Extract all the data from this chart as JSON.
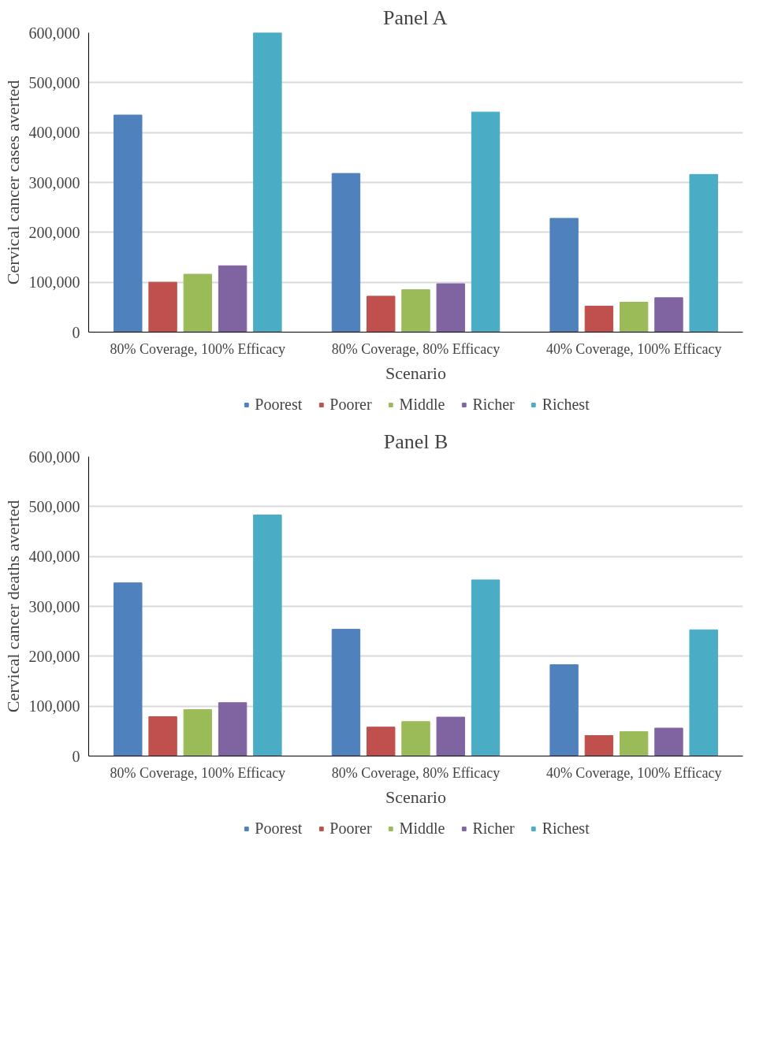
{
  "chart_data": [
    {
      "type": "bar",
      "title": "Panel A",
      "xlabel": "Scenario",
      "ylabel": "Cervical cancer cases averted",
      "categories": [
        "80% Coverage, 100% Efficacy",
        "80% Coverage, 80% Efficacy",
        "40% Coverage, 100% Efficacy"
      ],
      "series": [
        {
          "name": "Poorest",
          "color": "#4f81bd",
          "values": [
            435000,
            318000,
            228000
          ]
        },
        {
          "name": "Poorer",
          "color": "#c0504d",
          "values": [
            100000,
            72000,
            52000
          ]
        },
        {
          "name": "Middle",
          "color": "#9bbb59",
          "values": [
            116000,
            85000,
            60000
          ]
        },
        {
          "name": "Richer",
          "color": "#8064a2",
          "values": [
            133000,
            97000,
            69000
          ]
        },
        {
          "name": "Richest",
          "color": "#4bacc6",
          "values": [
            600000,
            441000,
            316000
          ]
        }
      ],
      "ylim": [
        0,
        600000
      ],
      "yticks": [
        {
          "value": 0,
          "label": "0"
        },
        {
          "value": 100000,
          "label": "100,000"
        },
        {
          "value": 200000,
          "label": "200,000"
        },
        {
          "value": 300000,
          "label": "300,000"
        },
        {
          "value": 400000,
          "label": "400,000"
        },
        {
          "value": 500000,
          "label": "500,000"
        },
        {
          "value": 600000,
          "label": "600,000"
        }
      ],
      "grid": "y",
      "legend": "bottom"
    },
    {
      "type": "bar",
      "title": "Panel B",
      "xlabel": "Scenario",
      "ylabel": "Cervical cancer deaths averted",
      "categories": [
        "80% Coverage, 100% Efficacy",
        "80% Coverage, 80% Efficacy",
        "40% Coverage, 100% Efficacy"
      ],
      "series": [
        {
          "name": "Poorest",
          "color": "#4f81bd",
          "values": [
            347000,
            254000,
            183000
          ]
        },
        {
          "name": "Poorer",
          "color": "#c0504d",
          "values": [
            79000,
            58000,
            41000
          ]
        },
        {
          "name": "Middle",
          "color": "#9bbb59",
          "values": [
            93000,
            69000,
            49000
          ]
        },
        {
          "name": "Richer",
          "color": "#8064a2",
          "values": [
            107000,
            78000,
            56000
          ]
        },
        {
          "name": "Richest",
          "color": "#4bacc6",
          "values": [
            483000,
            353000,
            253000
          ]
        }
      ],
      "ylim": [
        0,
        600000
      ],
      "yticks": [
        {
          "value": 0,
          "label": "0"
        },
        {
          "value": 100000,
          "label": "100,000"
        },
        {
          "value": 200000,
          "label": "200,000"
        },
        {
          "value": 300000,
          "label": "300,000"
        },
        {
          "value": 400000,
          "label": "400,000"
        },
        {
          "value": 500000,
          "label": "500,000"
        },
        {
          "value": 600000,
          "label": "600,000"
        }
      ],
      "grid": "y",
      "legend": "bottom"
    }
  ]
}
